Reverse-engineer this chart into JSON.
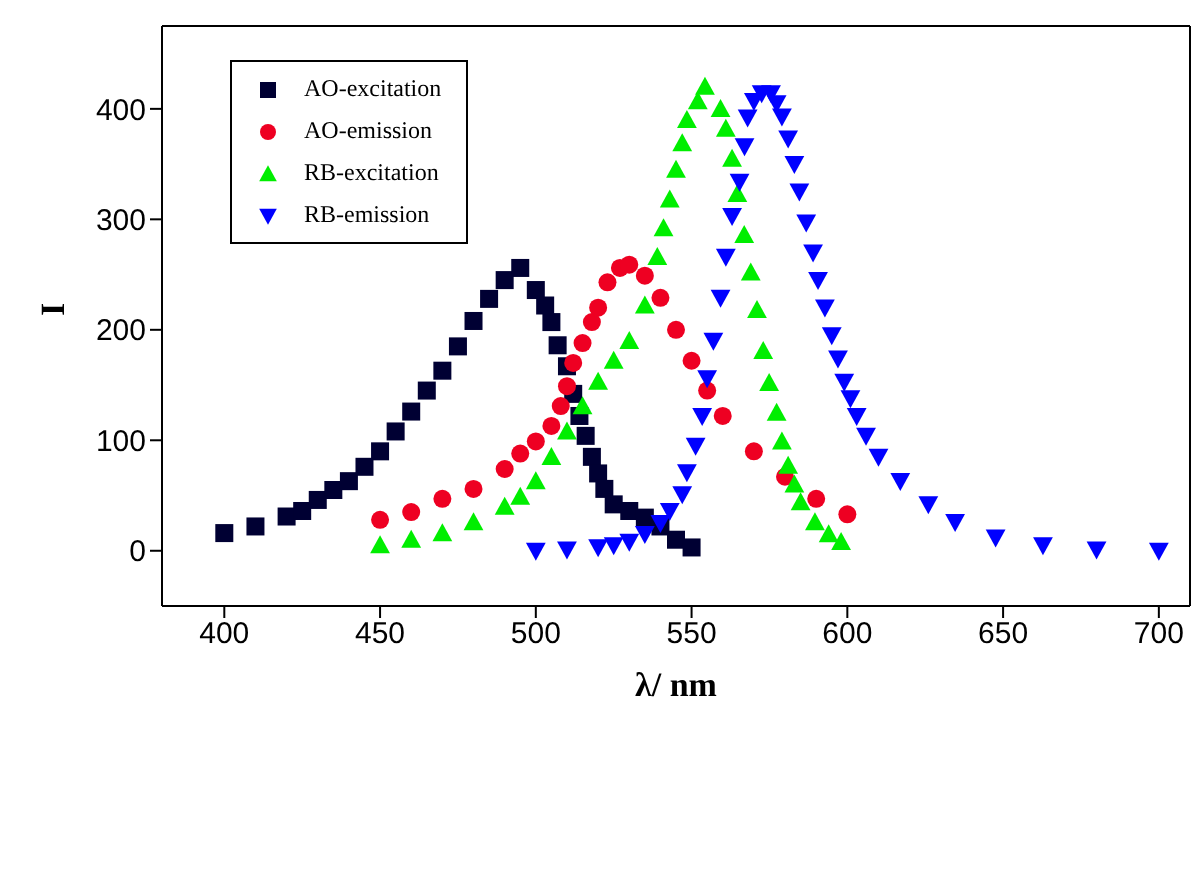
{
  "chart_data": {
    "type": "scatter",
    "xlabel": "λ/ nm",
    "ylabel": "I",
    "xlim": [
      380,
      710
    ],
    "ylim": [
      -50,
      475
    ],
    "xticks": [
      400,
      450,
      500,
      550,
      600,
      650,
      700
    ],
    "yticks": [
      0,
      100,
      200,
      300,
      400
    ],
    "legend": "top left",
    "series": [
      {
        "name": "AO-excitation",
        "color": "#000033",
        "marker": "square",
        "x": [
          400,
          410,
          420,
          425,
          430,
          435,
          440,
          445,
          450,
          455,
          460,
          465,
          470,
          475,
          480,
          485,
          490,
          495,
          500,
          503,
          505,
          507,
          510,
          512,
          514,
          516,
          518,
          520,
          522,
          525,
          530,
          535,
          540,
          545,
          550
        ],
        "values": [
          16,
          22,
          31,
          36,
          46,
          55,
          63,
          76,
          90,
          108,
          126,
          145,
          163,
          185,
          208,
          228,
          245,
          256,
          236,
          222,
          207,
          186,
          167,
          142,
          122,
          104,
          85,
          70,
          56,
          42,
          36,
          30,
          22,
          10,
          3
        ]
      },
      {
        "name": "AO-emission",
        "color": "#ee0022",
        "marker": "circle",
        "x": [
          450,
          460,
          470,
          480,
          490,
          495,
          500,
          505,
          508,
          510,
          512,
          515,
          518,
          520,
          523,
          527,
          530,
          535,
          540,
          545,
          550,
          555,
          560,
          570,
          580,
          590,
          600
        ],
        "values": [
          28,
          35,
          47,
          56,
          74,
          88,
          99,
          113,
          131,
          149,
          170,
          188,
          207,
          220,
          243,
          256,
          259,
          249,
          229,
          200,
          172,
          145,
          122,
          90,
          67,
          47,
          33
        ]
      },
      {
        "name": "RB-excitation",
        "color": "#00ee00",
        "marker": "triangle",
        "x": [
          450,
          460,
          470,
          480,
          490,
          495,
          500,
          505,
          510,
          515,
          520,
          525,
          530,
          535,
          539,
          541,
          543,
          545,
          547,
          548.5,
          552,
          554.3,
          559.3,
          561,
          563,
          564.7,
          566.9,
          569,
          571,
          573,
          574.9,
          577.3,
          579,
          581,
          583,
          585,
          589.6,
          594,
          598
        ],
        "values": [
          5,
          10,
          16,
          26,
          40,
          49,
          63,
          85,
          108,
          131,
          153,
          172,
          190,
          222,
          266,
          292,
          318,
          345,
          369,
          390,
          407,
          420,
          400,
          382,
          355,
          323,
          286,
          252,
          218,
          181,
          152,
          125,
          99,
          77,
          60,
          44,
          26,
          15,
          8
        ]
      },
      {
        "name": "RB-emission",
        "color": "#0000ff",
        "marker": "triangle-down",
        "x": [
          500,
          510,
          520,
          525,
          530,
          535,
          540,
          543,
          547,
          548.5,
          551.3,
          553.4,
          555,
          557,
          559.3,
          561,
          563,
          565.4,
          567,
          568,
          570,
          572.5,
          575.5,
          577.3,
          579,
          581,
          583,
          584.6,
          586.8,
          589,
          590.6,
          592.8,
          595,
          597,
          599,
          601,
          603,
          606,
          610,
          617,
          626,
          634.6,
          647.6,
          662.8,
          680,
          700
        ],
        "values": [
          0,
          1,
          3,
          5,
          8,
          15,
          25,
          36,
          51,
          71,
          95,
          122,
          156,
          190,
          229,
          266,
          303,
          334,
          366,
          392,
          407,
          414,
          414,
          405,
          393,
          373,
          350,
          325,
          297,
          270,
          245,
          220,
          195,
          174,
          153,
          138,
          122,
          104,
          85,
          63,
          42,
          26,
          12,
          5,
          1,
          0
        ]
      }
    ]
  }
}
